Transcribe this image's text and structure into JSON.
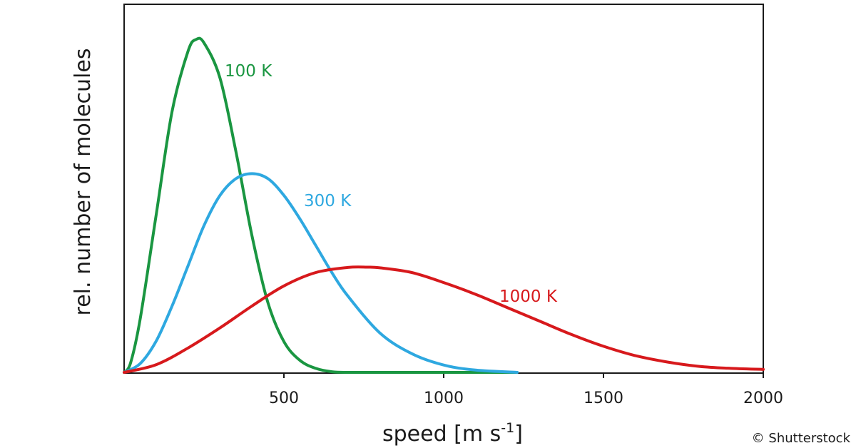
{
  "chart_data": {
    "type": "line",
    "title": "",
    "xlabel": "speed  [m s",
    "xlabel_superscript": "-1",
    "xlabel_suffix": "]",
    "ylabel": "rel. number of molecules",
    "xlim": [
      0,
      2000
    ],
    "ylim": [
      0,
      1.0
    ],
    "xticks": [
      500,
      1000,
      1500,
      2000
    ],
    "grid": false,
    "legend": "inline labels next to curves",
    "series": [
      {
        "name": "100 K",
        "color": "#1a9641",
        "x": [
          0,
          20,
          50,
          100,
          150,
          200,
          225,
          250,
          300,
          350,
          400,
          450,
          500,
          550,
          600,
          650,
          700,
          800,
          1000,
          1230
        ],
        "y": [
          0,
          0.03,
          0.16,
          0.47,
          0.78,
          0.96,
          0.995,
          0.985,
          0.88,
          0.66,
          0.41,
          0.21,
          0.094,
          0.038,
          0.014,
          0.004,
          0.001,
          0.0,
          0.0,
          0.0
        ]
      },
      {
        "name": "300 K",
        "color": "#2ea8e0",
        "x": [
          0,
          50,
          100,
          150,
          200,
          250,
          300,
          350,
          400,
          450,
          500,
          550,
          600,
          650,
          700,
          800,
          900,
          1000,
          1100,
          1230
        ],
        "y": [
          0,
          0.028,
          0.095,
          0.2,
          0.32,
          0.44,
          0.53,
          0.58,
          0.595,
          0.58,
          0.53,
          0.46,
          0.38,
          0.3,
          0.23,
          0.12,
          0.058,
          0.024,
          0.009,
          0.002
        ]
      },
      {
        "name": "1000 K",
        "color": "#d7191c",
        "x": [
          0,
          100,
          200,
          300,
          400,
          500,
          600,
          700,
          760,
          800,
          900,
          1000,
          1100,
          1200,
          1300,
          1400,
          1500,
          1600,
          1700,
          1800,
          1900,
          2000
        ],
        "y": [
          0,
          0.025,
          0.075,
          0.135,
          0.2,
          0.26,
          0.3,
          0.315,
          0.316,
          0.314,
          0.3,
          0.27,
          0.235,
          0.195,
          0.155,
          0.115,
          0.08,
          0.052,
          0.033,
          0.02,
          0.014,
          0.011
        ]
      }
    ]
  },
  "credit": "© Shutterstock"
}
